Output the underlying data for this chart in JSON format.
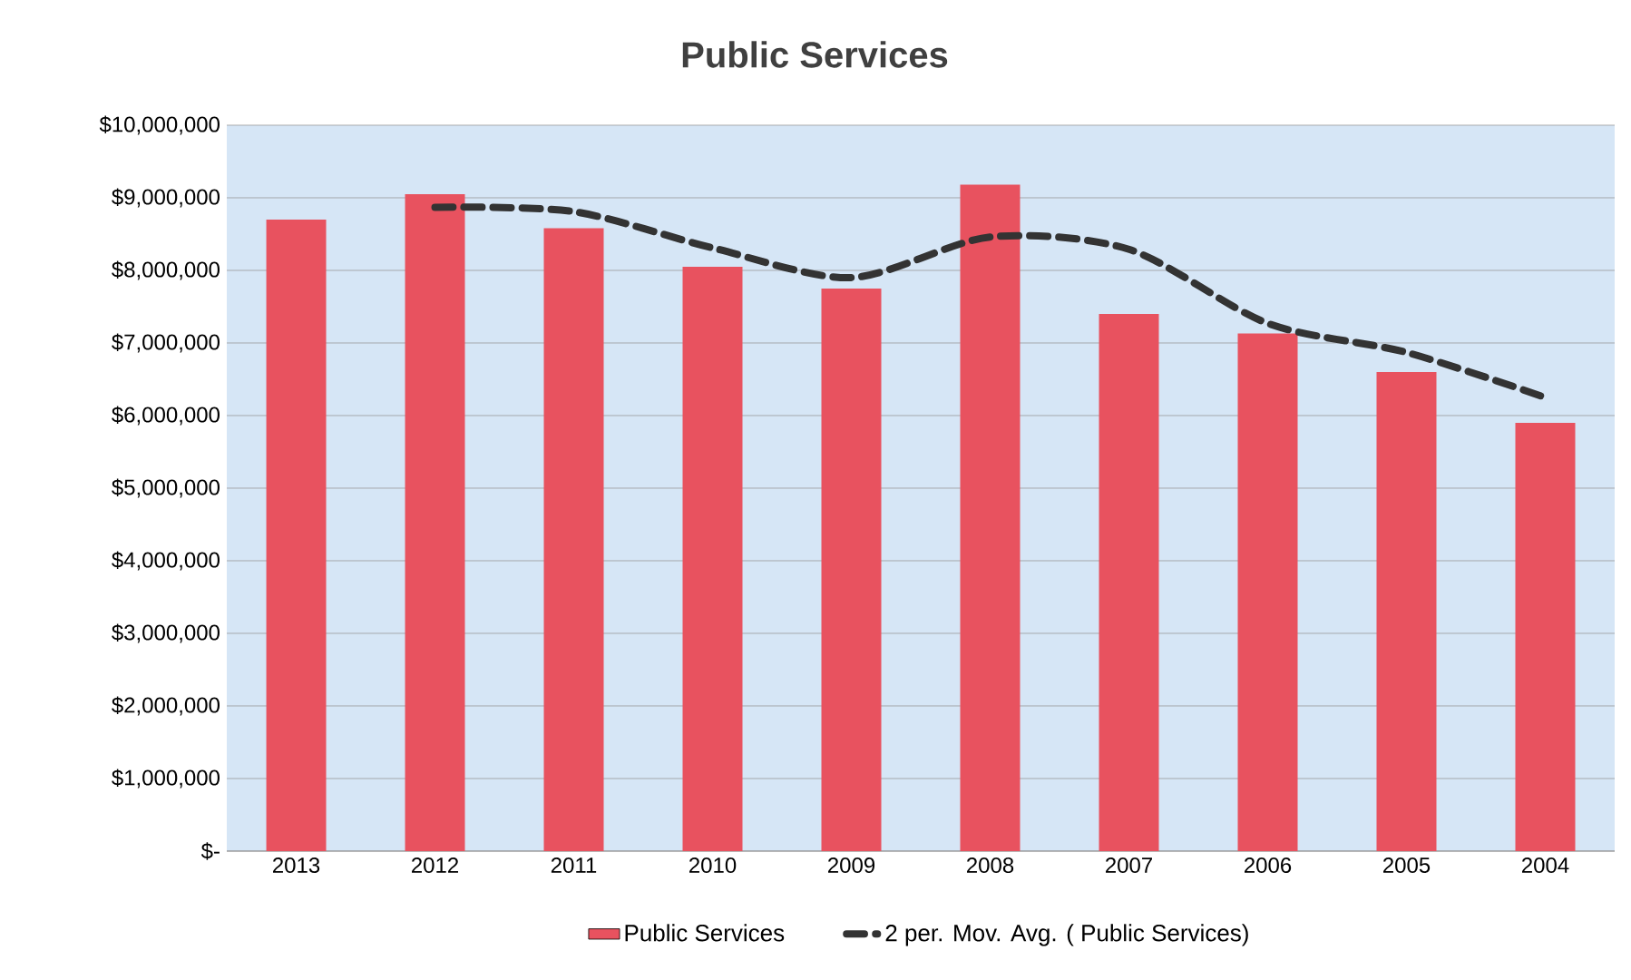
{
  "chart_data": {
    "type": "bar",
    "title": "Public Services",
    "categories": [
      "2013",
      "2012",
      "2011",
      "2010",
      "2009",
      "2008",
      "2007",
      "2006",
      "2005",
      "2004"
    ],
    "series": [
      {
        "name": "Public Services",
        "color": "#e8525f",
        "values": [
          8700000,
          9050000,
          8580000,
          8050000,
          7750000,
          9180000,
          7400000,
          7130000,
          6600000,
          5900000
        ]
      },
      {
        "name": "2 per. Mov. Avg. ( Public Services)",
        "type": "line",
        "line_style": "dashed",
        "color": "#333333",
        "values": [
          null,
          8870000,
          8810000,
          8310000,
          7900000,
          8460000,
          8290000,
          7270000,
          6870000,
          6250000
        ]
      }
    ],
    "ylim": [
      0,
      10000000
    ],
    "yticks": [
      {
        "value": 0,
        "label": "$-"
      },
      {
        "value": 1000000,
        "label": "$1,000,000"
      },
      {
        "value": 2000000,
        "label": "$2,000,000"
      },
      {
        "value": 3000000,
        "label": "$3,000,000"
      },
      {
        "value": 4000000,
        "label": "$4,000,000"
      },
      {
        "value": 5000000,
        "label": "$5,000,000"
      },
      {
        "value": 6000000,
        "label": "$6,000,000"
      },
      {
        "value": 7000000,
        "label": "$7,000,000"
      },
      {
        "value": 8000000,
        "label": "$8,000,000"
      },
      {
        "value": 9000000,
        "label": "$9,000,000"
      },
      {
        "value": 10000000,
        "label": "$10,000,000"
      }
    ],
    "grid": "y",
    "legend": "bottom"
  }
}
